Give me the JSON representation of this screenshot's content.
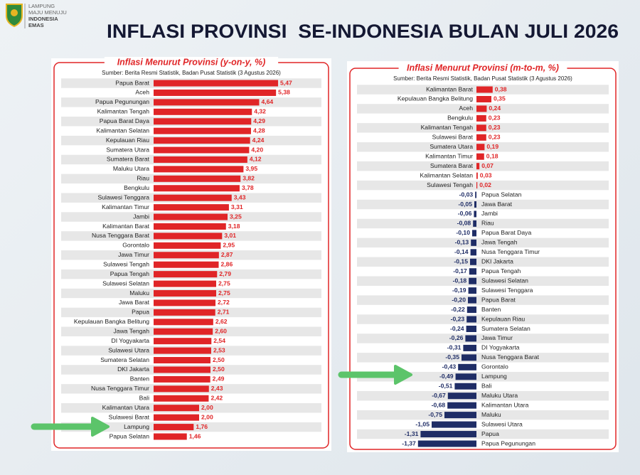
{
  "slide": {
    "logo_lines": [
      "LAMPUNG",
      "MAJU MENUJU",
      "INDONESIA",
      "EMAS"
    ],
    "title": "INFLASI PROVINSI  SE-INDONESIA BULAN JULI 2026"
  },
  "chart_data": [
    {
      "type": "bar",
      "orientation": "horizontal",
      "title": "Inflasi Menurut Provinsi (y-on-y, %)",
      "source": "Sumber: Berita Resmi Statistik, Badan Pusat Statistik (3 Agustus 2026)",
      "categories": [
        "Papua Barat",
        "Aceh",
        "Papua Pegunungan",
        "Kalimantan Tengah",
        "Papua Barat Daya",
        "Kalimantan Selatan",
        "Kepulauan Riau",
        "Sumatera Utara",
        "Sumatera Barat",
        "Maluku Utara",
        "Riau",
        "Bengkulu",
        "Sulawesi Tenggara",
        "Kalimantan Timur",
        "Jambi",
        "Kalimantan Barat",
        "Nusa Tenggara Barat",
        "Gorontalo",
        "Jawa Timur",
        "Sulawesi Tengah",
        "Papua Tengah",
        "Sulawesi Selatan",
        "Maluku",
        "Jawa Barat",
        "Papua",
        "Kepulauan Bangka Belitung",
        "Jawa Tengah",
        "DI Yogyakarta",
        "Sulawesi Utara",
        "Sumatera Selatan",
        "DKI Jakarta",
        "Banten",
        "Nusa Tenggara Timur",
        "Bali",
        "Kalimantan Utara",
        "Sulawesi Barat",
        "Lampung",
        "Papua Selatan"
      ],
      "values": [
        5.47,
        5.38,
        4.64,
        4.32,
        4.29,
        4.28,
        4.24,
        4.2,
        4.12,
        3.95,
        3.82,
        3.78,
        3.43,
        3.31,
        3.25,
        3.18,
        3.01,
        2.95,
        2.87,
        2.86,
        2.79,
        2.75,
        2.75,
        2.72,
        2.71,
        2.62,
        2.6,
        2.54,
        2.53,
        2.5,
        2.5,
        2.49,
        2.43,
        2.42,
        2.0,
        2.0,
        1.76,
        1.46
      ],
      "value_labels": [
        "5,47",
        "5,38",
        "4,64",
        "4,32",
        "4,29",
        "4,28",
        "4,24",
        "4,20",
        "4,12",
        "3,95",
        "3,82",
        "3,78",
        "3,43",
        "3,31",
        "3,25",
        "3,18",
        "3,01",
        "2,95",
        "2,87",
        "2,86",
        "2,79",
        "2,75",
        "2,75",
        "2,72",
        "2,71",
        "2,62",
        "2,60",
        "2,54",
        "2,53",
        "2,50",
        "2,50",
        "2,49",
        "2,43",
        "2,42",
        "2,00",
        "2,00",
        "1,76",
        "1,46"
      ],
      "color": "#e02527",
      "negative_color": "#1f2d66",
      "xlim": [
        0,
        6
      ]
    },
    {
      "type": "bar",
      "orientation": "horizontal",
      "title": "Inflasi Menurut Provinsi (m-to-m, %)",
      "source": "Sumber: Berita Resmi Statistik, Badan Pusat Statistik (3 Agustus 2026)",
      "categories": [
        "Kalimantan Barat",
        "Kepulauan Bangka Belitung",
        "Aceh",
        "Bengkulu",
        "Kalimantan Tengah",
        "Sulawesi Barat",
        "Sumatera Utara",
        "Kalimantan Timur",
        "Sumatera Barat",
        "Kalimantan Selatan",
        "Sulawesi Tengah",
        "Papua Selatan",
        "Jawa Barat",
        "Jambi",
        "Riau",
        "Papua Barat Daya",
        "Jawa Tengah",
        "Nusa Tenggara Timur",
        "DKI Jakarta",
        "Papua Tengah",
        "Sulawesi Selatan",
        "Sulawesi Tenggara",
        "Papua Barat",
        "Banten",
        "Kepulauan Riau",
        "Sumatera Selatan",
        "Jawa Timur",
        "DI Yogyakarta",
        "Nusa Tenggara Barat",
        "Gorontalo",
        "Lampung",
        "Bali",
        "Maluku Utara",
        "Kalimantan Utara",
        "Maluku",
        "Sulawesi Utara",
        "Papua",
        "Papua Pegunungan"
      ],
      "values": [
        0.38,
        0.35,
        0.24,
        0.23,
        0.23,
        0.23,
        0.19,
        0.18,
        0.07,
        0.03,
        0.02,
        -0.03,
        -0.05,
        -0.06,
        -0.08,
        -0.1,
        -0.13,
        -0.14,
        -0.15,
        -0.17,
        -0.18,
        -0.19,
        -0.2,
        -0.22,
        -0.23,
        -0.24,
        -0.26,
        -0.31,
        -0.35,
        -0.43,
        -0.49,
        -0.51,
        -0.67,
        -0.68,
        -0.75,
        -1.05,
        -1.31,
        -1.37
      ],
      "value_labels": [
        "0,38",
        "0,35",
        "0,24",
        "0,23",
        "0,23",
        "0,23",
        "0,19",
        "0,18",
        "0,07",
        "0,03",
        "0,02",
        "-0,03",
        "-0,05",
        "-0,06",
        "-0,08",
        "-0,10",
        "-0,13",
        "-0,14",
        "-0,15",
        "-0,17",
        "-0,18",
        "-0,19",
        "-0,20",
        "-0,22",
        "-0,23",
        "-0,24",
        "-0,26",
        "-0,31",
        "-0,35",
        "-0,43",
        "-0,49",
        "-0,51",
        "-0,67",
        "-0,68",
        "-0,75",
        "-1,05",
        "-1,31",
        "-1,37"
      ],
      "color": "#e02527",
      "negative_color": "#1f2d66",
      "xlim": [
        -1.5,
        0.5
      ]
    }
  ]
}
